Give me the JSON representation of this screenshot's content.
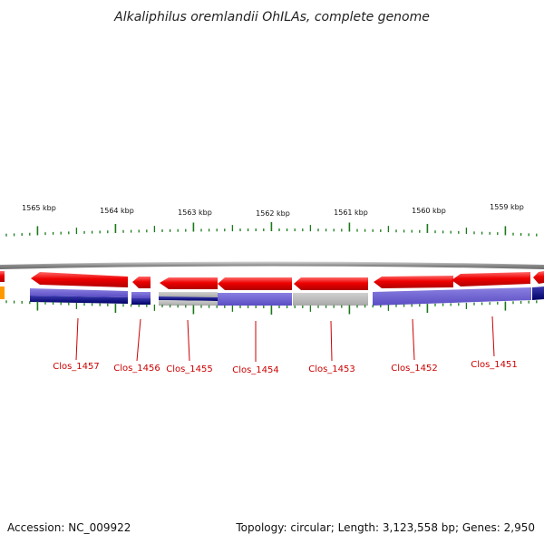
{
  "title": "Alkaliphilus oremlandii OhILAs, complete genome",
  "accession": "Accession: NC_009922",
  "summary": "Topology: circular; Length: 3,123,558 bp; Genes: 2,950",
  "colors": {
    "forward_gene": "#ee0000",
    "backbone": "#909090",
    "tick": "#1a7a1a",
    "label": "#cc0000",
    "dark_blue": "#00007a",
    "mid_blue": "#6a5acd",
    "grey_band": "#b8b8b8",
    "orange": "#ff9900"
  },
  "ruler": [
    {
      "label": "1565 kbp"
    },
    {
      "label": "1564 kbp"
    },
    {
      "label": "1563 kbp"
    },
    {
      "label": "1562 kbp"
    },
    {
      "label": "1561 kbp"
    },
    {
      "label": "1560 kbp"
    },
    {
      "label": "1559 kbp"
    }
  ],
  "genes": [
    {
      "label": "Clos_1457"
    },
    {
      "label": "Clos_1456"
    },
    {
      "label": "Clos_1455"
    },
    {
      "label": "Clos_1454"
    },
    {
      "label": "Clos_1453"
    },
    {
      "label": "Clos_1452"
    },
    {
      "label": "Clos_1451"
    }
  ]
}
